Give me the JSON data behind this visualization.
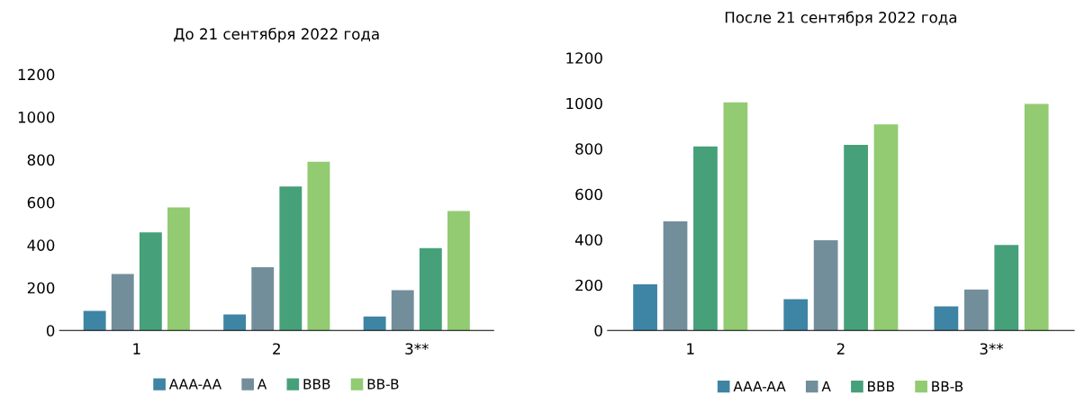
{
  "chart_data": [
    {
      "type": "bar",
      "title": "До 21 сентября 2022 года",
      "categories": [
        "1",
        "2",
        "3**"
      ],
      "ylim": [
        0,
        1200
      ],
      "yticks": [
        0,
        200,
        400,
        600,
        800,
        1000,
        1200
      ],
      "grid": false,
      "legend": "bottom",
      "series": [
        {
          "name": "AAA-AA",
          "color": "#3e84a4",
          "values": [
            91,
            75,
            65
          ]
        },
        {
          "name": "A",
          "color": "#738e9b",
          "values": [
            264,
            296,
            189
          ]
        },
        {
          "name": "BBB",
          "color": "#46a07a",
          "values": [
            459,
            674,
            386
          ]
        },
        {
          "name": "BB-B",
          "color": "#92cb72",
          "values": [
            576,
            790,
            560
          ]
        }
      ]
    },
    {
      "type": "bar",
      "title": "После 21 сентября 2022 года",
      "categories": [
        "1",
        "2",
        "3**"
      ],
      "ylim": [
        0,
        1200
      ],
      "yticks": [
        0,
        200,
        400,
        600,
        800,
        1000,
        1200
      ],
      "grid": false,
      "legend": "bottom",
      "series": [
        {
          "name": "AAA-AA",
          "color": "#3e84a4",
          "values": [
            203,
            137,
            106
          ]
        },
        {
          "name": "A",
          "color": "#738e9b",
          "values": [
            480,
            397,
            180
          ]
        },
        {
          "name": "BBB",
          "color": "#46a07a",
          "values": [
            810,
            817,
            376
          ]
        },
        {
          "name": "BB-B",
          "color": "#92cb72",
          "values": [
            1004,
            907,
            997
          ]
        }
      ]
    }
  ]
}
